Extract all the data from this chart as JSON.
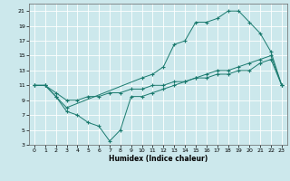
{
  "title": "",
  "xlabel": "Humidex (Indice chaleur)",
  "bg_color": "#cce8ec",
  "grid_color": "#ffffff",
  "line_color": "#1a7a6e",
  "xlim": [
    -0.5,
    23.5
  ],
  "ylim": [
    3,
    22
  ],
  "xticks": [
    0,
    1,
    2,
    3,
    4,
    5,
    6,
    7,
    8,
    9,
    10,
    11,
    12,
    13,
    14,
    15,
    16,
    17,
    18,
    19,
    20,
    21,
    22,
    23
  ],
  "yticks": [
    3,
    5,
    7,
    9,
    11,
    13,
    15,
    17,
    19,
    21
  ],
  "line1_x": [
    0,
    1,
    2,
    3,
    10,
    11,
    12,
    13,
    14,
    15,
    16,
    17,
    18,
    19,
    20,
    21,
    22,
    23
  ],
  "line1_y": [
    11,
    11,
    9.5,
    8,
    12,
    12.5,
    13.5,
    16.5,
    17,
    19.5,
    19.5,
    20,
    21,
    21,
    19.5,
    18,
    15.5,
    11
  ],
  "line2_x": [
    0,
    1,
    2,
    3,
    4,
    5,
    6,
    7,
    8,
    9,
    10,
    11,
    12,
    13,
    14,
    15,
    16,
    17,
    18,
    19,
    20,
    21,
    22,
    23
  ],
  "line2_y": [
    11,
    11,
    10,
    9,
    9,
    9.5,
    9.5,
    10,
    10,
    10.5,
    10.5,
    11,
    11,
    11.5,
    11.5,
    12,
    12,
    12.5,
    12.5,
    13,
    13,
    14,
    14.5,
    11
  ],
  "line3_x": [
    0,
    1,
    2,
    3,
    4,
    5,
    6,
    7,
    8,
    9,
    10,
    11,
    12,
    13,
    14,
    15,
    16,
    17,
    18,
    19,
    20,
    21,
    22,
    23
  ],
  "line3_y": [
    11,
    11,
    9.5,
    7.5,
    7,
    6,
    5.5,
    3.5,
    5,
    9.5,
    9.5,
    10,
    10.5,
    11,
    11.5,
    12,
    12.5,
    13,
    13,
    13.5,
    14,
    14.5,
    15,
    11
  ]
}
